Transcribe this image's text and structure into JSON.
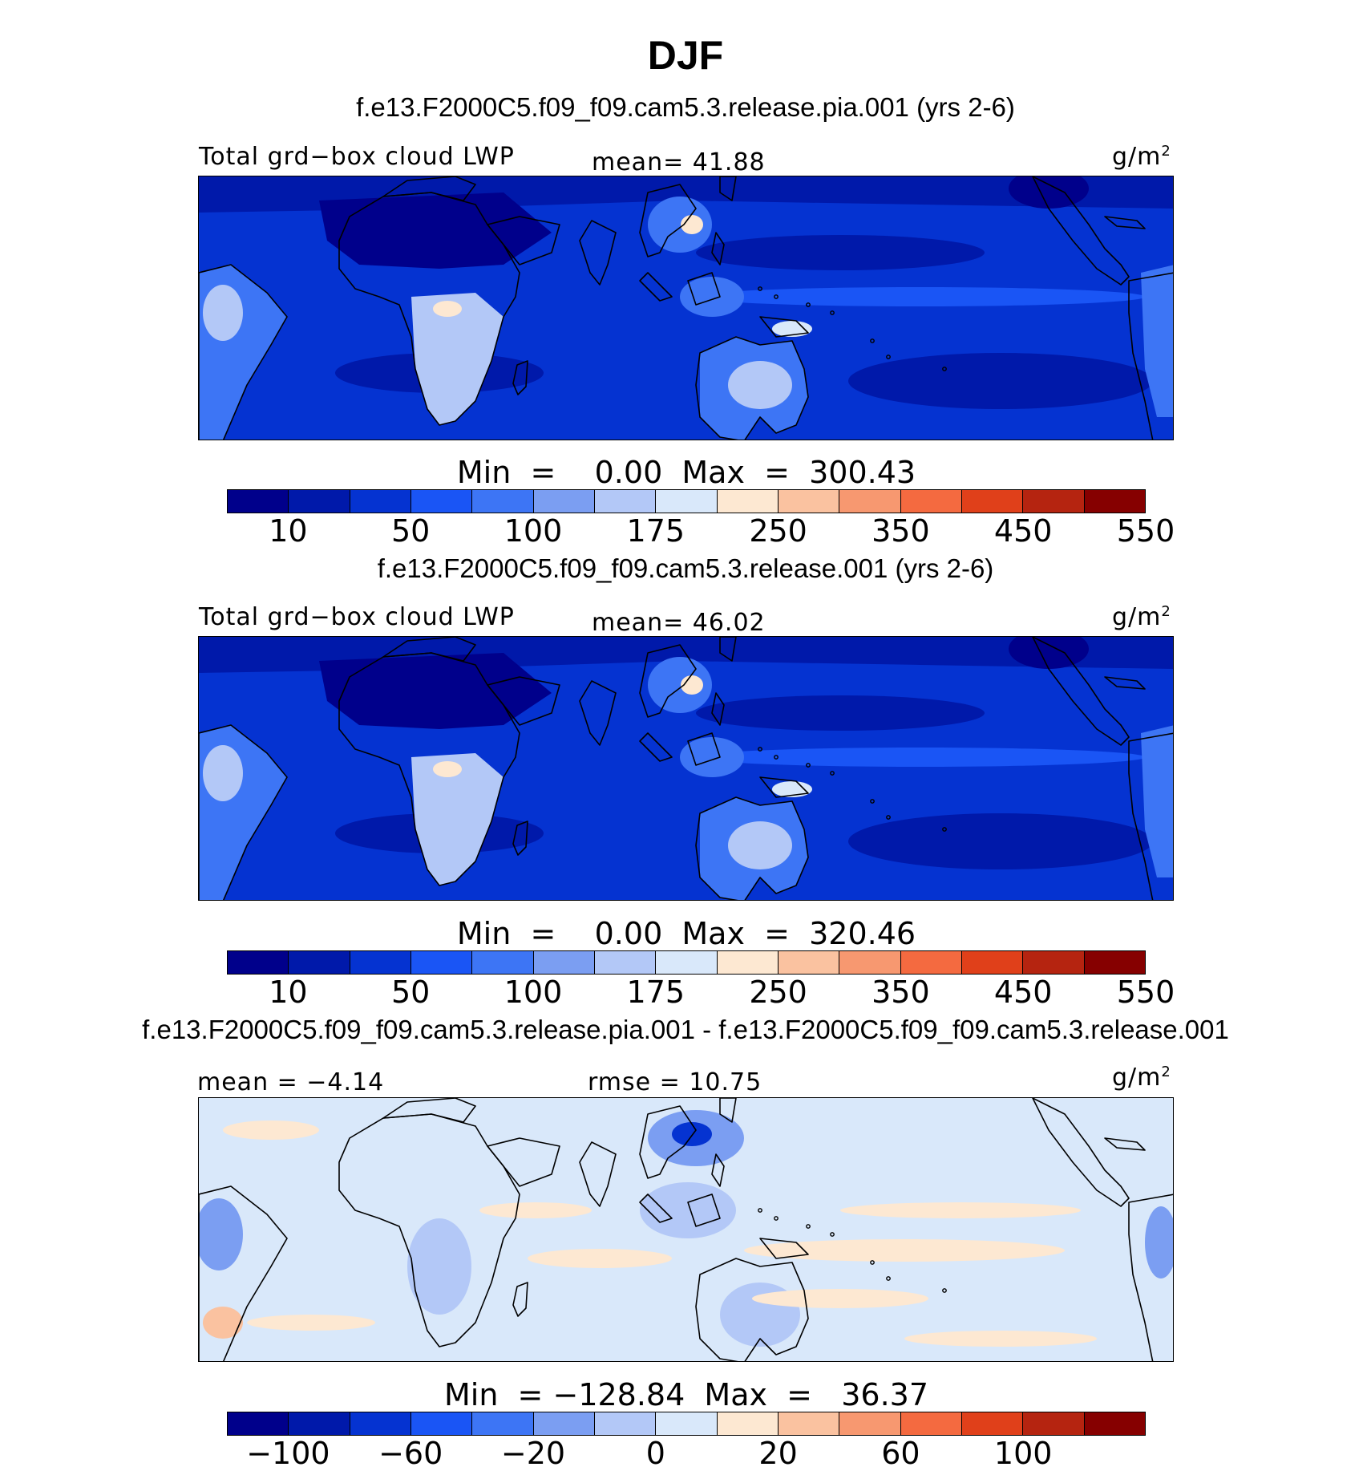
{
  "title": "DJF",
  "panels": [
    {
      "case": "f.e13.F2000C5.f09_f09.cam5.3.release.pia.001 (yrs 2-6)",
      "left_label": "Total grd−box cloud LWP",
      "center_label": "mean=  41.88",
      "units": "g/m",
      "units_exp": "2",
      "minmax": "Min  =    0.00  Max  =  300.43",
      "colorbar_colors": [
        "#00008B",
        "#0019AA",
        "#0533D1",
        "#1A55F5",
        "#3D75F5",
        "#7B9EF2",
        "#B3C8F7",
        "#D9E8FA",
        "#FDE8D2",
        "#FAC2A0",
        "#F79870",
        "#F46A40",
        "#E0401A",
        "#B52410",
        "#860000"
      ],
      "colorbar_ticks": [
        "10",
        "50",
        "100",
        "175",
        "250",
        "350",
        "450",
        "550"
      ],
      "ocean_color": "#0533D1"
    },
    {
      "case": "f.e13.F2000C5.f09_f09.cam5.3.release.001 (yrs 2-6)",
      "left_label": "Total grd−box cloud LWP",
      "center_label": "mean=  46.02",
      "units": "g/m",
      "units_exp": "2",
      "minmax": "Min  =    0.00  Max  =  320.46",
      "colorbar_colors": [
        "#00008B",
        "#0019AA",
        "#0533D1",
        "#1A55F5",
        "#3D75F5",
        "#7B9EF2",
        "#B3C8F7",
        "#D9E8FA",
        "#FDE8D2",
        "#FAC2A0",
        "#F79870",
        "#F46A40",
        "#E0401A",
        "#B52410",
        "#860000"
      ],
      "colorbar_ticks": [
        "10",
        "50",
        "100",
        "175",
        "250",
        "350",
        "450",
        "550"
      ],
      "ocean_color": "#0533D1"
    },
    {
      "case": "f.e13.F2000C5.f09_f09.cam5.3.release.pia.001 - f.e13.F2000C5.f09_f09.cam5.3.release.001",
      "left_label": "mean =  −4.14",
      "center_label": "rmse =  10.75",
      "units": "g/m",
      "units_exp": "2",
      "minmax": "Min  = −128.84  Max  =   36.37",
      "colorbar_colors": [
        "#00008B",
        "#0019AA",
        "#0533D1",
        "#1A55F5",
        "#3D75F5",
        "#7B9EF2",
        "#B3C8F7",
        "#D9E8FA",
        "#FDE8D2",
        "#FAC2A0",
        "#F79870",
        "#F46A40",
        "#E0401A",
        "#B52410",
        "#860000"
      ],
      "colorbar_ticks": [
        "−100",
        "−60",
        "−20",
        "0",
        "20",
        "60",
        "100"
      ],
      "ocean_color": "#D9E8FA"
    }
  ],
  "chart_data": [
    {
      "type": "heatmap",
      "title": "DJF",
      "subtitle": "f.e13.F2000C5.f09_f09.cam5.3.release.pia.001 (yrs 2-6)",
      "variable": "Total grd−box cloud LWP",
      "units": "g/m2",
      "mean": 41.88,
      "min": 0.0,
      "max": 300.43,
      "levels": [
        10,
        30,
        50,
        75,
        100,
        125,
        175,
        200,
        250,
        300,
        350,
        400,
        450,
        500,
        550
      ],
      "colorbar_ticks": [
        10,
        50,
        100,
        175,
        250,
        350,
        450,
        550
      ]
    },
    {
      "type": "heatmap",
      "title": "DJF",
      "subtitle": "f.e13.F2000C5.f09_f09.cam5.3.release.001 (yrs 2-6)",
      "variable": "Total grd−box cloud LWP",
      "units": "g/m2",
      "mean": 46.02,
      "min": 0.0,
      "max": 320.46,
      "levels": [
        10,
        30,
        50,
        75,
        100,
        125,
        175,
        200,
        250,
        300,
        350,
        400,
        450,
        500,
        550
      ],
      "colorbar_ticks": [
        10,
        50,
        100,
        175,
        250,
        350,
        450,
        550
      ]
    },
    {
      "type": "heatmap",
      "title": "DJF",
      "subtitle": "f.e13.F2000C5.f09_f09.cam5.3.release.pia.001 - f.e13.F2000C5.f09_f09.cam5.3.release.001",
      "units": "g/m2",
      "mean": -4.14,
      "rmse": 10.75,
      "min": -128.84,
      "max": 36.37,
      "levels": [
        -120,
        -100,
        -80,
        -60,
        -40,
        -20,
        -10,
        0,
        10,
        20,
        40,
        60,
        80,
        100,
        120
      ],
      "colorbar_ticks": [
        -100,
        -60,
        -20,
        0,
        20,
        60,
        100
      ]
    }
  ]
}
